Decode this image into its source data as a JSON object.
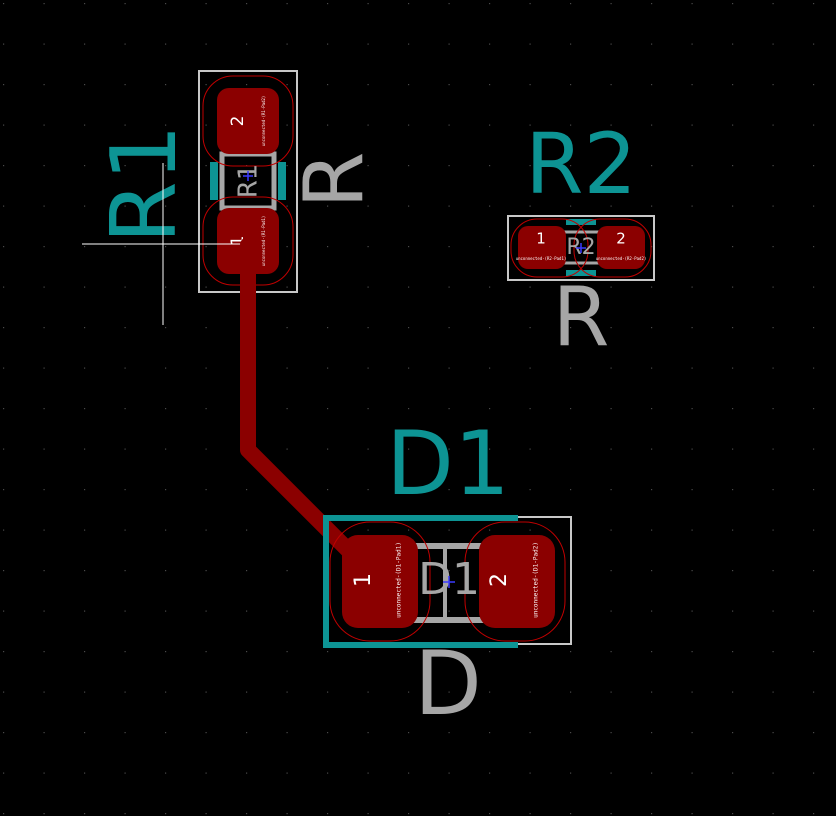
{
  "colors": {
    "background": "#000000",
    "copper_pad": "#8b0000",
    "copper_track": "#8b0000",
    "pad_outline": "#c00000",
    "silkscreen_ref": "#0d9494",
    "fab_text": "#a6a6a6",
    "courtyard": "#c8c8c8",
    "pad_text": "#ffffff",
    "cross": "#ffffff",
    "anchor": "#3a3aff",
    "grid_dot": "#4a4a4a"
  },
  "footprints": {
    "R1": {
      "reference": "R1",
      "value": "R",
      "fab_ref": "R1",
      "pad1": {
        "number": "1",
        "net": "unconnected-(R1-Pad1)"
      },
      "pad2": {
        "number": "2",
        "net": "unconnected-(R1-Pad2)"
      }
    },
    "R2": {
      "reference": "R2",
      "value": "R",
      "fab_ref": "R2",
      "pad1": {
        "number": "1",
        "net": "unconnected-(R2-Pad1)"
      },
      "pad2": {
        "number": "2",
        "net": "unconnected-(R2-Pad2)"
      }
    },
    "D1": {
      "reference": "D1",
      "value": "D",
      "fab_ref": "D1",
      "pad1": {
        "number": "1",
        "net": "unconnected-(D1-Pad1)"
      },
      "pad2": {
        "number": "2",
        "net": "unconnected-(D1-Pad2)"
      }
    }
  }
}
